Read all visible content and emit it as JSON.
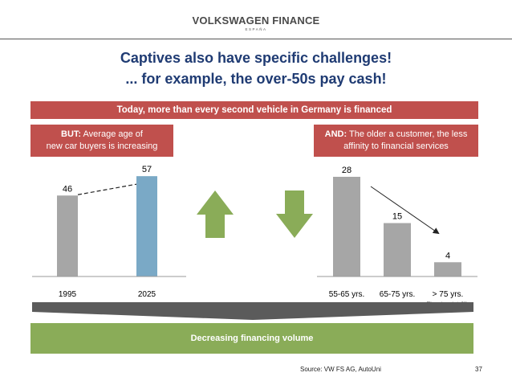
{
  "header": {
    "brand": "VOLKSWAGEN FINANCE",
    "brand_sub": "ESPAÑA"
  },
  "title": {
    "line1": "Captives also have specific challenges!",
    "line2": "... for example, the over-50s pay cash!"
  },
  "banner": "Today, more than every second vehicle in Germany is financed",
  "left_box": {
    "bold": "BUT:",
    "text1": " Average age of",
    "text2": "new car buyers is increasing"
  },
  "right_box": {
    "bold": "AND:",
    "text1": " The older a customer, the less",
    "text2": "affinity to financial services"
  },
  "chart_data": [
    {
      "type": "bar",
      "categories": [
        "1995",
        "2025"
      ],
      "values": [
        46,
        57
      ],
      "title": "",
      "xlabel": "",
      "ylabel": "",
      "colors": [
        "#a6a6a6",
        "#7aa9c6"
      ]
    },
    {
      "type": "bar",
      "categories": [
        "55-65 yrs.",
        "65-75 yrs.",
        "> 75 yrs."
      ],
      "values": [
        28,
        15,
        4
      ],
      "title": "",
      "xlabel": "",
      "ylabel": "",
      "note": "(Financing rate in %)",
      "colors": [
        "#a6a6a6",
        "#a6a6a6",
        "#a6a6a6"
      ]
    }
  ],
  "arrows": {
    "up": "up-arrow-icon",
    "down": "down-arrow-icon",
    "color": "#8aac58"
  },
  "footer": {
    "volume": "Decreasing financing volume",
    "source": "Source: VW FS AG, AutoUni",
    "page": "37"
  }
}
